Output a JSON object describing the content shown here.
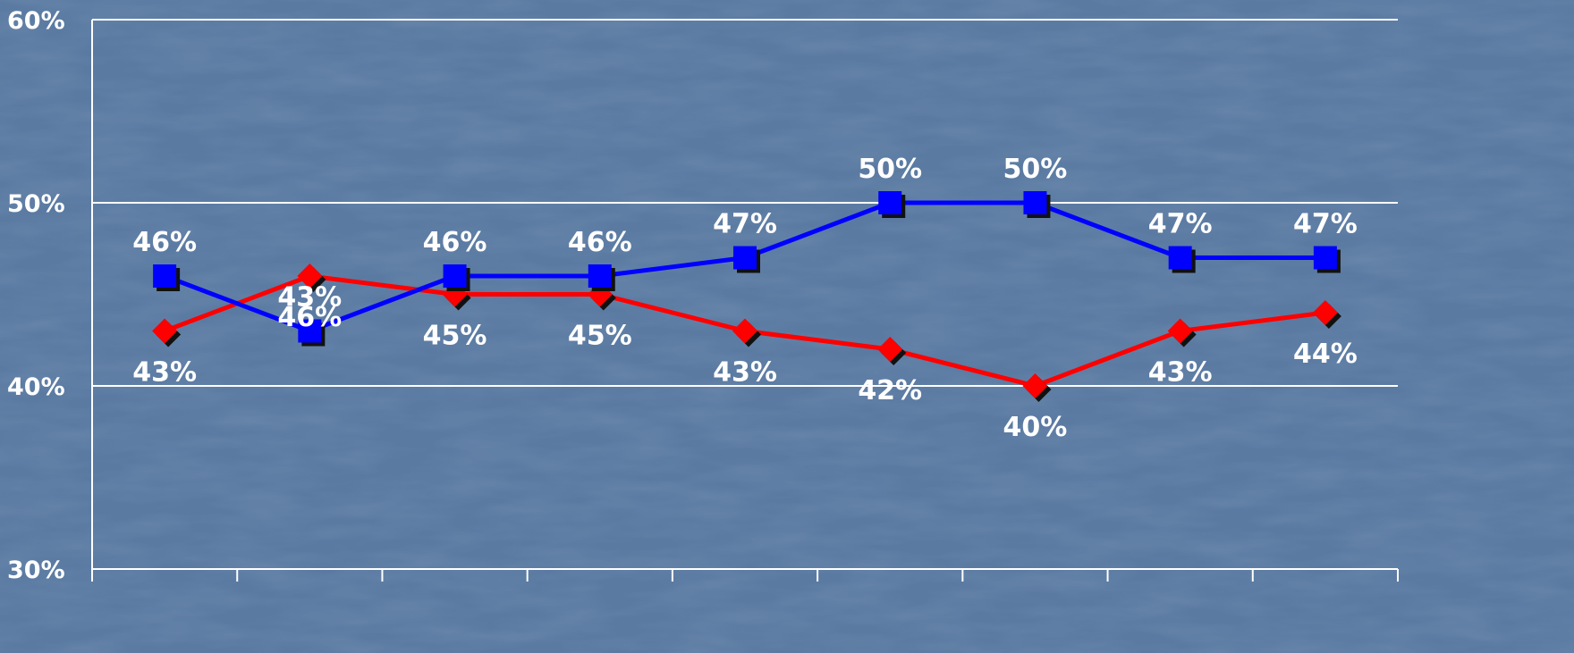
{
  "chart_data": {
    "type": "line",
    "title": "",
    "xlabel": "",
    "ylabel": "",
    "ylim": [
      30,
      60
    ],
    "yticks": [
      30,
      40,
      50,
      60
    ],
    "ytick_labels": [
      "30%",
      "40%",
      "50%",
      "60%"
    ],
    "grid": true,
    "legend": "none",
    "x": [
      1,
      2,
      3,
      4,
      5,
      6,
      7,
      8,
      9
    ],
    "series": [
      {
        "color": "#0000ff",
        "marker": "square",
        "label_position": "above",
        "values": [
          46,
          43,
          46,
          46,
          47,
          50,
          50,
          47,
          47
        ],
        "labels": [
          "46%",
          "43%",
          "46%",
          "46%",
          "47%",
          "50%",
          "50%",
          "47%",
          "47%"
        ]
      },
      {
        "color": "#ff0000",
        "marker": "diamond",
        "label_position": "below",
        "values": [
          43,
          46,
          45,
          45,
          43,
          42,
          40,
          43,
          44
        ],
        "labels": [
          "43%",
          "46%",
          "45%",
          "45%",
          "43%",
          "42%",
          "40%",
          "43%",
          "44%"
        ]
      }
    ]
  }
}
